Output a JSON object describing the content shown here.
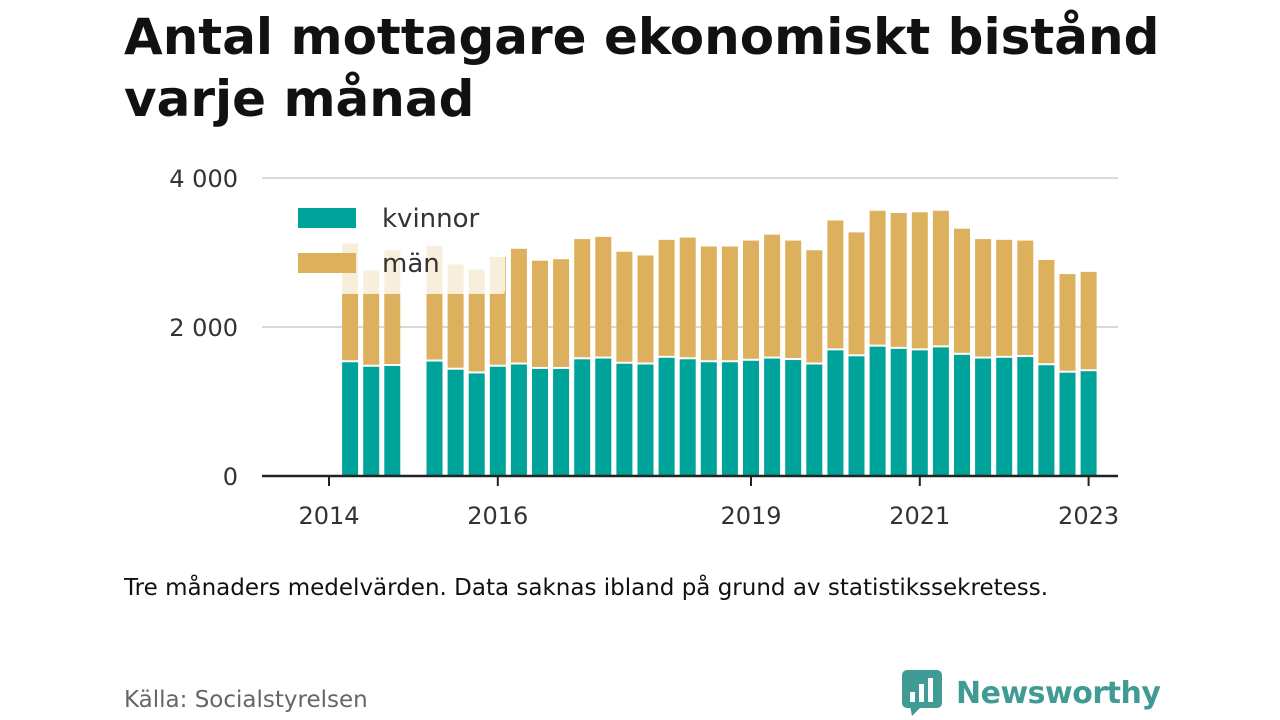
{
  "title": "Antal mottagare ekonomiskt bistånd varje månad",
  "note": "Tre månaders medelvärden. Data saknas ibland på grund av statistikssekretess.",
  "source": "Källa: Socialstyrelsen",
  "brand": {
    "name": "Newsworthy",
    "icon": "bar-chart-speech-bubble-icon"
  },
  "colors": {
    "kvinnor": "#00a39a",
    "man": "#dcb05c",
    "grid": "#d9d9d9",
    "axis": "#222222",
    "text": "#333333"
  },
  "chart_data": {
    "type": "bar",
    "stacked": true,
    "ylim": [
      0,
      4000
    ],
    "yticks": [
      {
        "value": 0,
        "label": "0"
      },
      {
        "value": 2000,
        "label": "2 000"
      },
      {
        "value": 4000,
        "label": "4 000"
      }
    ],
    "xticks": [
      {
        "index": 0,
        "label": "2014"
      },
      {
        "index": 8,
        "label": "2016"
      },
      {
        "index": 20,
        "label": "2019"
      },
      {
        "index": 28,
        "label": "2021"
      },
      {
        "index": 36,
        "label": "2023"
      }
    ],
    "grid": true,
    "legend": "top-left",
    "series": [
      {
        "name": "kvinnor",
        "values": [
          null,
          1540,
          1480,
          1490,
          null,
          1550,
          1440,
          1390,
          1480,
          1510,
          1450,
          1450,
          1580,
          1590,
          1520,
          1510,
          1600,
          1580,
          1540,
          1540,
          1560,
          1590,
          1570,
          1510,
          1700,
          1620,
          1750,
          1720,
          1700,
          1740,
          1640,
          1590,
          1600,
          1610,
          1500,
          1400,
          1420
        ]
      },
      {
        "name": "män",
        "values": [
          null,
          1580,
          1280,
          1540,
          null,
          1540,
          1400,
          1380,
          1460,
          1540,
          1440,
          1460,
          1600,
          1620,
          1490,
          1450,
          1570,
          1620,
          1540,
          1540,
          1600,
          1650,
          1590,
          1520,
          1730,
          1650,
          1810,
          1810,
          1840,
          1820,
          1680,
          1590,
          1570,
          1550,
          1400,
          1310,
          1320
        ]
      }
    ]
  }
}
